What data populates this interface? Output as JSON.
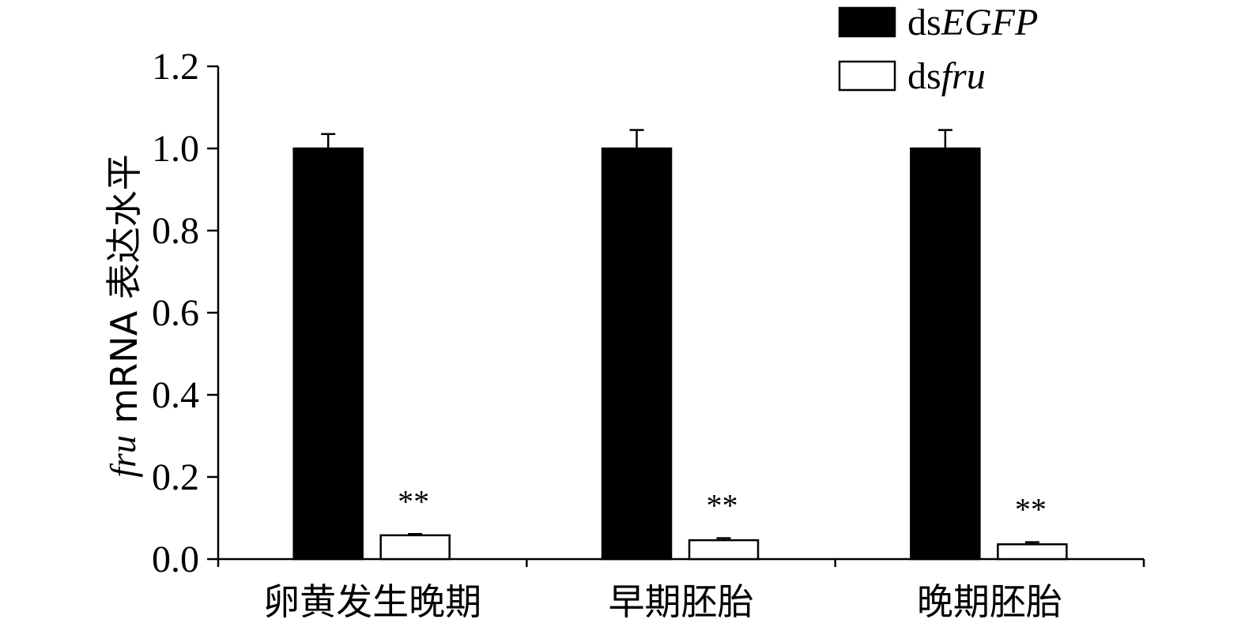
{
  "chart_data": {
    "type": "bar",
    "categories": [
      "卵黄发生晚期",
      "早期胚胎",
      "晚期胚胎"
    ],
    "series": [
      {
        "name": "dsEGFP",
        "name_prefix": "ds",
        "name_italic": "EGFP",
        "color": "#000000",
        "fill": "#000000",
        "values": [
          1.0,
          1.0,
          1.0
        ],
        "errors": [
          0.035,
          0.045,
          0.045
        ],
        "significance": [
          "",
          "",
          ""
        ]
      },
      {
        "name": "dsfru",
        "name_prefix": "ds",
        "name_italic": "fru",
        "color": "#000000",
        "fill": "#ffffff",
        "values": [
          0.058,
          0.046,
          0.036
        ],
        "errors": [
          0.003,
          0.005,
          0.005
        ],
        "significance": [
          "**",
          "**",
          "**"
        ]
      }
    ],
    "ylabel": "fru mRNA 表达水平",
    "ylabel_italic": "fru",
    "ylabel_rest": " mRNA 表达水平",
    "xlabel": "",
    "ylim": [
      0,
      1.2
    ],
    "yticks": [
      "0.0",
      "0.2",
      "0.4",
      "0.6",
      "0.8",
      "1.0",
      "1.2"
    ],
    "grid": false,
    "legend_position": "top-right"
  }
}
